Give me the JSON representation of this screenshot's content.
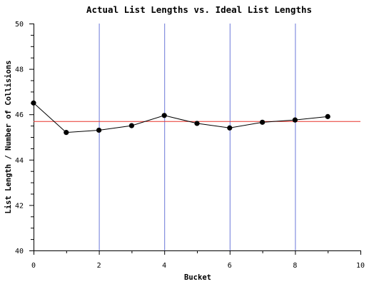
{
  "chart_data": {
    "type": "line",
    "title": "Actual List Lengths vs. Ideal List Lengths",
    "xlabel": "Bucket",
    "ylabel": "List Length / Number of Collisions",
    "xlim": [
      0,
      10
    ],
    "ylim": [
      40,
      50
    ],
    "x_major_ticks": [
      0,
      2,
      4,
      6,
      8,
      10
    ],
    "x_tick_labels": [
      "0",
      "2",
      "4",
      "6",
      "8",
      "10"
    ],
    "x_minor_step": 1,
    "y_major_ticks": [
      40,
      42,
      44,
      46,
      48,
      50
    ],
    "y_tick_labels": [
      "40",
      "42",
      "44",
      "46",
      "48",
      "50"
    ],
    "y_minor_step": 0.5,
    "vertical_grid_at": [
      2,
      4,
      6,
      8
    ],
    "grid_color": "#6b78d8",
    "series": [
      {
        "color": "#000000",
        "x": [
          0,
          1,
          2,
          3,
          4,
          5,
          6,
          7,
          8,
          9
        ],
        "values": [
          46.5,
          45.2,
          45.3,
          45.5,
          45.95,
          45.6,
          45.4,
          45.65,
          45.75,
          45.9
        ]
      }
    ],
    "reference_line": {
      "y": 45.7,
      "color": "#e8322a"
    }
  }
}
